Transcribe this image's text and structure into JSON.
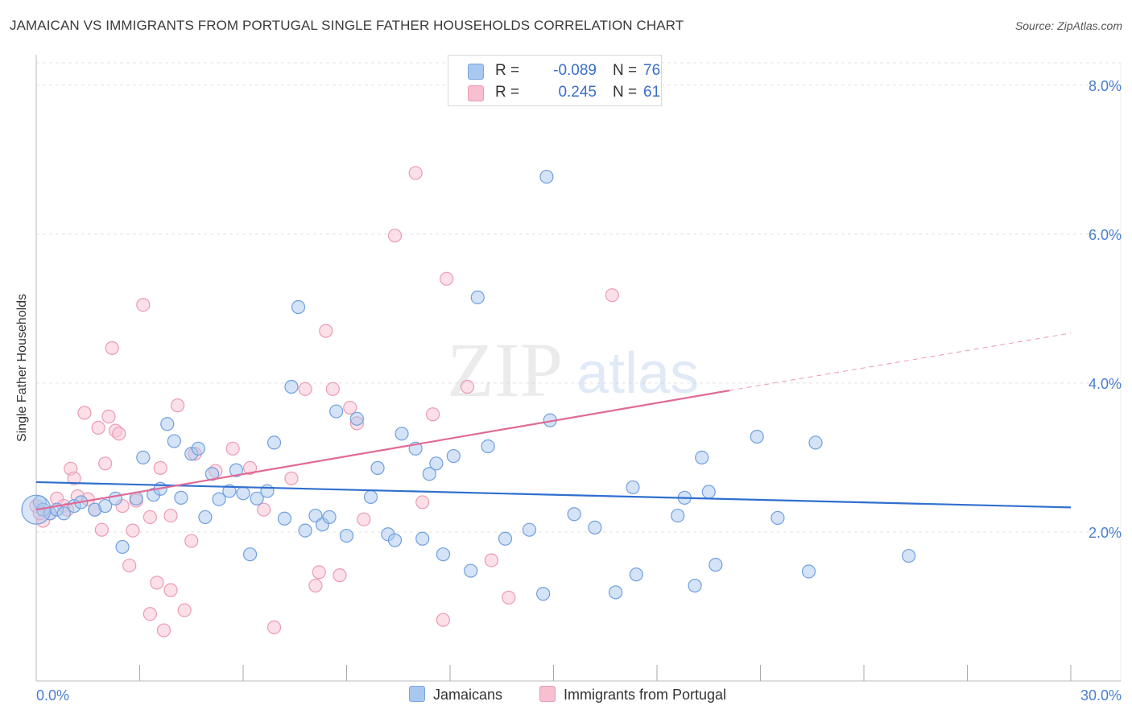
{
  "title": "JAMAICAN VS IMMIGRANTS FROM PORTUGAL SINGLE FATHER HOUSEHOLDS CORRELATION CHART",
  "source": "Source: ZipAtlas.com",
  "watermark": {
    "zip": "ZIP",
    "atlas": "atlas"
  },
  "legend_top": [
    {
      "r_label": "R =",
      "r_value": "-0.089",
      "n_label": "N =",
      "n_value": "76",
      "color": "#a9c8f0",
      "border": "#7aa6e0"
    },
    {
      "r_label": "R =",
      "r_value": "0.245",
      "n_label": "N =",
      "n_value": "61",
      "color": "#f7bfd0",
      "border": "#ec9ab5"
    }
  ],
  "legend_bottom": [
    {
      "label": "Jamaicans",
      "color": "#a9c8f0",
      "border": "#7aa6e0"
    },
    {
      "label": "Immigrants from Portugal",
      "color": "#f7bfd0",
      "border": "#ec9ab5"
    }
  ],
  "chart_data": {
    "type": "scatter",
    "xlabel": "",
    "ylabel": "Single Father Households",
    "xlim": [
      0,
      30
    ],
    "ylim": [
      0,
      8.3
    ],
    "x_tick_labels": [
      "0.0%",
      "30.0%"
    ],
    "y_ticks": [
      2,
      4,
      6,
      8
    ],
    "y_tick_labels": [
      "2.0%",
      "4.0%",
      "6.0%",
      "8.0%"
    ],
    "grid": true,
    "legend": "top-center",
    "colors": {
      "jamaicans": "#6fa0e0",
      "portugal": "#ec8fae",
      "jam_line": "#2f6fcf",
      "por_line": "#e06a95"
    },
    "series": [
      {
        "name": "Jamaicans",
        "trend": {
          "x": [
            0,
            30
          ],
          "y": [
            2.67,
            2.33
          ]
        },
        "points": [
          [
            0.1,
            2.4
          ],
          [
            0.2,
            2.3
          ],
          [
            0.4,
            2.25
          ],
          [
            0.6,
            2.3
          ],
          [
            0.8,
            2.25
          ],
          [
            1.1,
            2.35
          ],
          [
            1.3,
            2.4
          ],
          [
            1.7,
            2.3
          ],
          [
            2.0,
            2.35
          ],
          [
            2.3,
            2.45
          ],
          [
            2.5,
            1.8
          ],
          [
            2.9,
            2.45
          ],
          [
            3.1,
            3.0
          ],
          [
            3.4,
            2.5
          ],
          [
            3.6,
            2.58
          ],
          [
            3.8,
            3.45
          ],
          [
            4.0,
            3.22
          ],
          [
            4.2,
            2.46
          ],
          [
            4.5,
            3.05
          ],
          [
            4.7,
            3.12
          ],
          [
            4.9,
            2.2
          ],
          [
            5.1,
            2.78
          ],
          [
            5.3,
            2.44
          ],
          [
            5.6,
            2.55
          ],
          [
            5.8,
            2.83
          ],
          [
            6.0,
            2.52
          ],
          [
            6.2,
            1.7
          ],
          [
            6.4,
            2.45
          ],
          [
            6.7,
            2.55
          ],
          [
            6.9,
            3.2
          ],
          [
            7.2,
            2.18
          ],
          [
            7.4,
            3.95
          ],
          [
            7.6,
            5.02
          ],
          [
            7.8,
            2.02
          ],
          [
            8.1,
            2.22
          ],
          [
            8.3,
            2.1
          ],
          [
            8.5,
            2.2
          ],
          [
            8.7,
            3.62
          ],
          [
            9.0,
            1.95
          ],
          [
            9.3,
            3.52
          ],
          [
            9.7,
            2.47
          ],
          [
            9.9,
            2.86
          ],
          [
            10.2,
            1.97
          ],
          [
            10.4,
            1.89
          ],
          [
            10.6,
            3.32
          ],
          [
            11.0,
            3.12
          ],
          [
            11.2,
            1.91
          ],
          [
            11.4,
            2.78
          ],
          [
            11.6,
            2.92
          ],
          [
            11.8,
            1.7
          ],
          [
            12.1,
            3.02
          ],
          [
            12.6,
            1.48
          ],
          [
            12.8,
            5.15
          ],
          [
            13.1,
            3.15
          ],
          [
            13.6,
            1.91
          ],
          [
            14.3,
            2.03
          ],
          [
            14.7,
            1.17
          ],
          [
            14.8,
            6.77
          ],
          [
            14.9,
            3.5
          ],
          [
            15.6,
            2.24
          ],
          [
            16.2,
            2.06
          ],
          [
            16.8,
            1.19
          ],
          [
            17.3,
            2.6
          ],
          [
            17.4,
            1.43
          ],
          [
            18.6,
            2.22
          ],
          [
            18.8,
            2.46
          ],
          [
            19.1,
            1.28
          ],
          [
            19.3,
            3.0
          ],
          [
            19.5,
            2.54
          ],
          [
            19.7,
            1.56
          ],
          [
            20.9,
            3.28
          ],
          [
            21.5,
            2.19
          ],
          [
            22.4,
            1.47
          ],
          [
            22.6,
            3.2
          ],
          [
            25.3,
            1.68
          ],
          [
            0.0,
            2.3
          ]
        ]
      },
      {
        "name": "Immigrants from Portugal",
        "trend": {
          "x": [
            0,
            20.1
          ],
          "y": [
            2.3,
            3.9
          ]
        },
        "trend_dashed": {
          "x": [
            20.1,
            30
          ],
          "y": [
            3.9,
            4.67
          ]
        },
        "points": [
          [
            0.0,
            2.35
          ],
          [
            0.2,
            2.15
          ],
          [
            0.4,
            2.25
          ],
          [
            0.6,
            2.45
          ],
          [
            0.8,
            2.35
          ],
          [
            1.0,
            2.85
          ],
          [
            1.1,
            2.72
          ],
          [
            1.2,
            2.48
          ],
          [
            1.4,
            3.6
          ],
          [
            1.5,
            2.44
          ],
          [
            1.7,
            2.3
          ],
          [
            1.8,
            3.4
          ],
          [
            1.9,
            2.03
          ],
          [
            2.0,
            2.92
          ],
          [
            2.1,
            3.55
          ],
          [
            2.2,
            4.47
          ],
          [
            2.3,
            3.36
          ],
          [
            2.4,
            3.32
          ],
          [
            2.5,
            2.35
          ],
          [
            2.7,
            1.55
          ],
          [
            2.8,
            2.02
          ],
          [
            2.9,
            2.42
          ],
          [
            3.1,
            5.05
          ],
          [
            3.3,
            0.9
          ],
          [
            3.3,
            2.2
          ],
          [
            3.5,
            1.32
          ],
          [
            3.6,
            2.86
          ],
          [
            3.7,
            0.68
          ],
          [
            3.9,
            1.22
          ],
          [
            3.9,
            2.22
          ],
          [
            4.1,
            3.7
          ],
          [
            4.3,
            0.95
          ],
          [
            4.5,
            1.88
          ],
          [
            4.6,
            3.05
          ],
          [
            5.2,
            2.82
          ],
          [
            5.7,
            3.12
          ],
          [
            6.2,
            2.86
          ],
          [
            6.6,
            2.3
          ],
          [
            6.9,
            0.72
          ],
          [
            7.4,
            2.72
          ],
          [
            7.8,
            3.92
          ],
          [
            8.1,
            1.28
          ],
          [
            8.2,
            1.46
          ],
          [
            8.4,
            4.7
          ],
          [
            8.6,
            3.92
          ],
          [
            8.8,
            1.42
          ],
          [
            9.1,
            3.67
          ],
          [
            9.3,
            3.46
          ],
          [
            9.5,
            2.17
          ],
          [
            10.4,
            5.98
          ],
          [
            11.0,
            6.82
          ],
          [
            11.2,
            2.4
          ],
          [
            11.5,
            3.58
          ],
          [
            11.8,
            0.82
          ],
          [
            11.9,
            5.4
          ],
          [
            12.5,
            3.95
          ],
          [
            13.2,
            1.62
          ],
          [
            13.7,
            1.12
          ],
          [
            16.7,
            5.18
          ],
          [
            0.1,
            2.25
          ],
          [
            0.9,
            2.3
          ]
        ]
      }
    ]
  }
}
